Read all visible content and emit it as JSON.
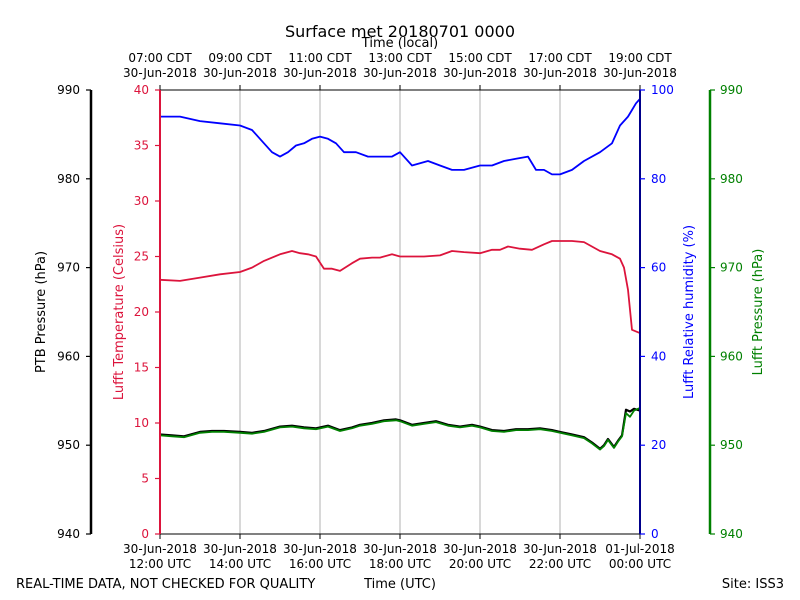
{
  "chart_data": {
    "type": "line",
    "title": "Surface met 20180701 0000",
    "top_axis_label": "Time (local)",
    "xlabel": "Time (UTC)",
    "footer_left": "REAL-TIME DATA, NOT CHECKED FOR QUALITY",
    "footer_right": "Site: ISS3",
    "x_ticks_local": [
      {
        "hour": 12,
        "line1": "07:00 CDT",
        "line2": "30-Jun-2018"
      },
      {
        "hour": 14,
        "line1": "09:00 CDT",
        "line2": "30-Jun-2018"
      },
      {
        "hour": 16,
        "line1": "11:00 CDT",
        "line2": "30-Jun-2018"
      },
      {
        "hour": 18,
        "line1": "13:00 CDT",
        "line2": "30-Jun-2018"
      },
      {
        "hour": 20,
        "line1": "15:00 CDT",
        "line2": "30-Jun-2018"
      },
      {
        "hour": 22,
        "line1": "17:00 CDT",
        "line2": "30-Jun-2018"
      },
      {
        "hour": 24,
        "line1": "19:00 CDT",
        "line2": "30-Jun-2018"
      }
    ],
    "x_ticks_utc": [
      {
        "hour": 12,
        "line1": "30-Jun-2018",
        "line2": "12:00 UTC"
      },
      {
        "hour": 14,
        "line1": "30-Jun-2018",
        "line2": "14:00 UTC"
      },
      {
        "hour": 16,
        "line1": "30-Jun-2018",
        "line2": "16:00 UTC"
      },
      {
        "hour": 18,
        "line1": "30-Jun-2018",
        "line2": "18:00 UTC"
      },
      {
        "hour": 20,
        "line1": "30-Jun-2018",
        "line2": "20:00 UTC"
      },
      {
        "hour": 22,
        "line1": "30-Jun-2018",
        "line2": "22:00 UTC"
      },
      {
        "hour": 24,
        "line1": "01-Jul-2018",
        "line2": "00:00 UTC"
      }
    ],
    "xlim": [
      12,
      24
    ],
    "axes": {
      "ptb_pressure": {
        "label": "PTB Pressure (hPa)",
        "range": [
          940,
          990
        ],
        "ticks": [
          940,
          950,
          960,
          970,
          980,
          990
        ],
        "color": "#000000"
      },
      "temperature": {
        "label": "Lufft Temperature (Celsius)",
        "range": [
          0,
          40
        ],
        "ticks": [
          0,
          5,
          10,
          15,
          20,
          25,
          30,
          35,
          40
        ],
        "color": "#dc143c"
      },
      "humidity": {
        "label": "Lufft Relative humidity (%)",
        "range": [
          0,
          100
        ],
        "ticks": [
          0,
          20,
          40,
          60,
          80,
          100
        ],
        "color": "#0000ff"
      },
      "lufft_pressure": {
        "label": "Lufft Pressure (hPa)",
        "range": [
          940,
          990
        ],
        "ticks": [
          940,
          950,
          960,
          970,
          980,
          990
        ],
        "color": "#008000"
      }
    },
    "series": [
      {
        "name": "Lufft Temperature",
        "axis": "temperature",
        "color": "#dc143c",
        "x": [
          12.0,
          12.5,
          13.0,
          13.5,
          14.0,
          14.3,
          14.6,
          15.0,
          15.3,
          15.5,
          15.7,
          15.9,
          16.1,
          16.3,
          16.5,
          16.8,
          17.0,
          17.3,
          17.5,
          17.8,
          18.0,
          18.3,
          18.6,
          19.0,
          19.3,
          19.6,
          20.0,
          20.3,
          20.5,
          20.7,
          21.0,
          21.3,
          21.6,
          21.8,
          22.0,
          22.3,
          22.6,
          23.0,
          23.3,
          23.5,
          23.6,
          23.7,
          23.8,
          24.0
        ],
        "values": [
          22.9,
          22.8,
          23.1,
          23.4,
          23.6,
          24.0,
          24.6,
          25.2,
          25.5,
          25.3,
          25.2,
          25.0,
          23.9,
          23.9,
          23.7,
          24.4,
          24.8,
          24.9,
          24.9,
          25.2,
          25.0,
          25.0,
          25.0,
          25.1,
          25.5,
          25.4,
          25.3,
          25.6,
          25.6,
          25.9,
          25.7,
          25.6,
          26.1,
          26.4,
          26.4,
          26.4,
          26.3,
          25.5,
          25.2,
          24.8,
          24.0,
          22.0,
          18.4,
          18.1
        ]
      },
      {
        "name": "Lufft Relative humidity",
        "axis": "humidity",
        "color": "#0000ff",
        "x": [
          12.0,
          12.5,
          13.0,
          13.5,
          14.0,
          14.3,
          14.6,
          14.8,
          15.0,
          15.2,
          15.4,
          15.6,
          15.8,
          16.0,
          16.2,
          16.4,
          16.6,
          16.9,
          17.2,
          17.5,
          17.8,
          18.0,
          18.3,
          18.7,
          19.0,
          19.3,
          19.6,
          20.0,
          20.3,
          20.6,
          20.9,
          21.2,
          21.4,
          21.6,
          21.8,
          22.0,
          22.3,
          22.6,
          23.0,
          23.3,
          23.5,
          23.7,
          23.8,
          23.9,
          24.0
        ],
        "values": [
          94,
          94,
          93,
          92.5,
          92,
          91,
          88,
          86,
          85,
          86,
          87.5,
          88,
          89,
          89.5,
          89,
          88,
          86,
          86,
          85,
          85,
          85,
          86,
          83,
          84,
          83,
          82,
          82,
          83,
          83,
          84,
          84.5,
          85,
          82,
          82,
          81,
          81,
          82,
          84,
          86,
          88,
          92,
          94,
          95.5,
          97,
          98
        ]
      },
      {
        "name": "PTB Pressure",
        "axis": "ptb_pressure",
        "color": "#000000",
        "x": [
          12.0,
          12.3,
          12.6,
          13.0,
          13.3,
          13.6,
          14.0,
          14.3,
          14.6,
          15.0,
          15.3,
          15.6,
          15.9,
          16.2,
          16.5,
          16.8,
          17.0,
          17.3,
          17.6,
          17.9,
          18.0,
          18.3,
          18.6,
          18.9,
          19.2,
          19.5,
          19.8,
          20.0,
          20.3,
          20.6,
          20.9,
          21.2,
          21.5,
          21.8,
          22.0,
          22.3,
          22.6,
          22.8,
          23.0,
          23.1,
          23.2,
          23.35,
          23.45,
          23.55,
          23.65,
          23.75,
          23.85,
          24.0
        ],
        "values": [
          951.2,
          951.1,
          951.0,
          951.5,
          951.6,
          951.6,
          951.5,
          951.4,
          951.6,
          952.1,
          952.2,
          952.0,
          951.9,
          952.2,
          951.7,
          952.0,
          952.3,
          952.5,
          952.8,
          952.9,
          952.8,
          952.3,
          952.5,
          952.7,
          952.3,
          952.1,
          952.3,
          952.1,
          951.7,
          951.6,
          951.8,
          951.8,
          951.9,
          951.7,
          951.5,
          951.2,
          950.9,
          950.3,
          949.6,
          950.0,
          950.7,
          949.8,
          950.5,
          951.1,
          954.0,
          953.8,
          954.1,
          953.9
        ]
      },
      {
        "name": "Lufft Pressure",
        "axis": "lufft_pressure",
        "color": "#008000",
        "x": [
          12.0,
          12.3,
          12.6,
          13.0,
          13.3,
          13.6,
          14.0,
          14.3,
          14.6,
          15.0,
          15.3,
          15.6,
          15.9,
          16.2,
          16.5,
          16.8,
          17.0,
          17.3,
          17.6,
          17.9,
          18.0,
          18.3,
          18.6,
          18.9,
          19.2,
          19.5,
          19.8,
          20.0,
          20.3,
          20.6,
          20.9,
          21.2,
          21.5,
          21.8,
          22.0,
          22.3,
          22.6,
          22.8,
          23.0,
          23.1,
          23.2,
          23.35,
          23.45,
          23.55,
          23.65,
          23.75,
          23.85,
          24.0
        ],
        "values": [
          951.1,
          951.0,
          950.9,
          951.4,
          951.5,
          951.5,
          951.4,
          951.3,
          951.5,
          952.0,
          952.1,
          951.9,
          951.8,
          952.1,
          951.6,
          951.9,
          952.2,
          952.4,
          952.7,
          952.8,
          952.7,
          952.2,
          952.4,
          952.6,
          952.2,
          952.0,
          952.2,
          952.0,
          951.6,
          951.5,
          951.7,
          951.7,
          951.8,
          951.6,
          951.4,
          951.1,
          950.8,
          950.2,
          949.5,
          949.9,
          950.6,
          949.7,
          950.4,
          951.0,
          953.6,
          953.2,
          953.9,
          954.2
        ]
      }
    ]
  }
}
